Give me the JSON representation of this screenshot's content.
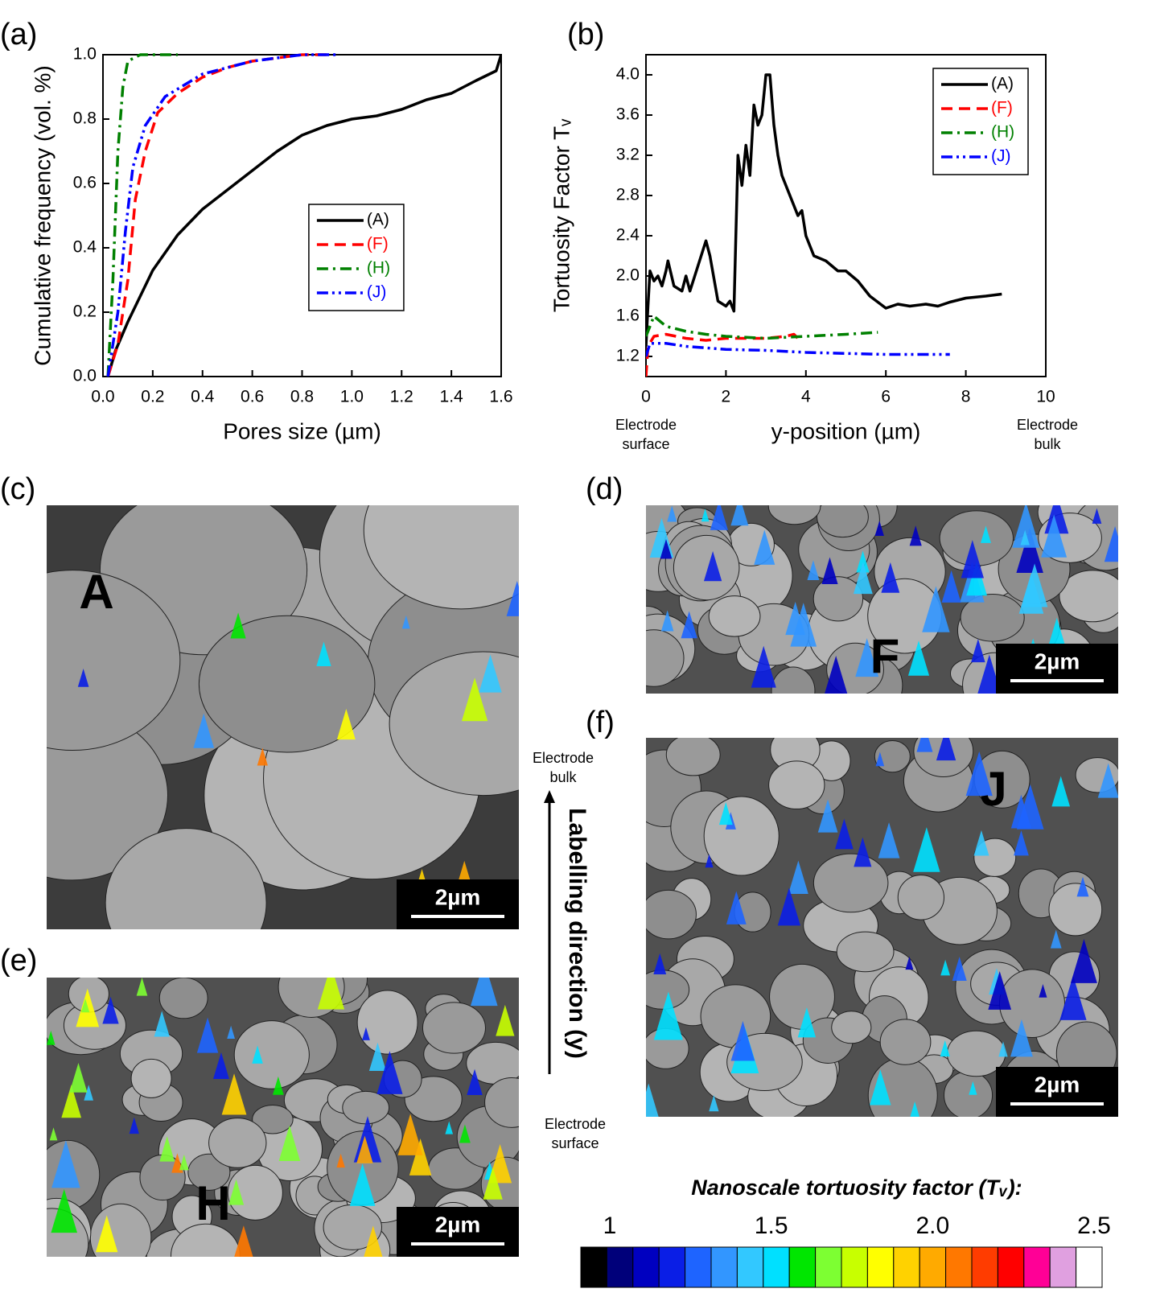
{
  "chart_data": [
    {
      "type": "line",
      "panel_label": "(a)",
      "x_label": "Pores size (µm)",
      "y_label": "Cumulative frequency (vol. %)",
      "xlim": [
        0,
        1.6
      ],
      "ylim": [
        0,
        1
      ],
      "xticks": [
        {
          "value": 0,
          "label": "0.0"
        },
        0.2,
        0.4,
        0.6,
        0.8,
        {
          "value": 1,
          "label": "1.0"
        },
        1.2,
        1.4,
        1.6
      ],
      "yticks": [
        {
          "value": 0,
          "label": "0.0"
        },
        0.2,
        0.4,
        0.6,
        0.8,
        {
          "value": 1,
          "label": "1.0"
        }
      ],
      "legend": "right",
      "series": [
        {
          "name": "(A)",
          "color": "#000000",
          "dash": "solid",
          "x": [
            0.02,
            0.05,
            0.1,
            0.15,
            0.2,
            0.3,
            0.4,
            0.5,
            0.6,
            0.7,
            0.8,
            0.9,
            1.0,
            1.1,
            1.2,
            1.3,
            1.4,
            1.5,
            1.58,
            1.6
          ],
          "values": [
            0,
            0.08,
            0.17,
            0.25,
            0.33,
            0.44,
            0.52,
            0.58,
            0.64,
            0.7,
            0.75,
            0.78,
            0.8,
            0.81,
            0.83,
            0.86,
            0.88,
            0.92,
            0.95,
            1.0
          ]
        },
        {
          "name": "(F)",
          "color": "#ff0000",
          "dash": "dash",
          "x": [
            0.02,
            0.06,
            0.1,
            0.13,
            0.17,
            0.22,
            0.3,
            0.4,
            0.5,
            0.6,
            0.7,
            0.8,
            0.9
          ],
          "values": [
            0,
            0.1,
            0.3,
            0.55,
            0.7,
            0.82,
            0.88,
            0.93,
            0.96,
            0.98,
            0.99,
            1.0,
            1.0
          ]
        },
        {
          "name": "(H)",
          "color": "#008000",
          "dash": "dashdot",
          "x": [
            0.02,
            0.04,
            0.06,
            0.08,
            0.1,
            0.15,
            0.3
          ],
          "values": [
            0,
            0.3,
            0.7,
            0.9,
            0.98,
            1.0,
            1.0
          ]
        },
        {
          "name": "(J)",
          "color": "#0000ff",
          "dash": "dashdotdot",
          "x": [
            0.02,
            0.06,
            0.09,
            0.12,
            0.17,
            0.25,
            0.4,
            0.6,
            0.8,
            0.95
          ],
          "values": [
            0,
            0.2,
            0.45,
            0.65,
            0.78,
            0.87,
            0.94,
            0.98,
            1.0,
            1.0
          ]
        }
      ]
    },
    {
      "type": "line",
      "panel_label": "(b)",
      "x_label": "y-position (µm)",
      "y_label": "Tortuosity Factor Tᵥ",
      "xlim": [
        0,
        10
      ],
      "ylim": [
        1.0,
        4.2
      ],
      "xticks": [
        0,
        2,
        4,
        6,
        8,
        10
      ],
      "yticks": [
        1.2,
        1.6,
        {
          "value": 2,
          "label": "2.0"
        },
        2.4,
        2.8,
        3.2,
        3.6,
        {
          "value": 4,
          "label": "4.0"
        }
      ],
      "legend": "upper right",
      "annotations": [
        "Electrode surface",
        "Electrode bulk"
      ],
      "series": [
        {
          "name": "(A)",
          "color": "#000000",
          "dash": "solid",
          "x": [
            0,
            0.05,
            0.1,
            0.2,
            0.3,
            0.4,
            0.5,
            0.55,
            0.7,
            0.9,
            1.0,
            1.1,
            1.3,
            1.5,
            1.6,
            1.8,
            2.0,
            2.1,
            2.2,
            2.3,
            2.4,
            2.5,
            2.6,
            2.7,
            2.8,
            2.9,
            3.0,
            3.1,
            3.2,
            3.3,
            3.4,
            3.6,
            3.8,
            3.9,
            4.0,
            4.2,
            4.5,
            4.8,
            5.0,
            5.3,
            5.6,
            6.0,
            6.3,
            6.6,
            7.0,
            7.3,
            7.6,
            8.0,
            8.5,
            8.9
          ],
          "values": [
            1.3,
            1.7,
            2.05,
            1.95,
            2.0,
            1.9,
            2.05,
            2.15,
            1.9,
            1.85,
            2.0,
            1.85,
            2.1,
            2.35,
            2.2,
            1.75,
            1.7,
            1.75,
            1.65,
            3.2,
            2.9,
            3.3,
            3.0,
            3.7,
            3.5,
            3.6,
            4.0,
            4.0,
            3.5,
            3.2,
            3.0,
            2.8,
            2.6,
            2.65,
            2.4,
            2.2,
            2.15,
            2.05,
            2.05,
            1.95,
            1.8,
            1.68,
            1.72,
            1.7,
            1.72,
            1.7,
            1.74,
            1.78,
            1.8,
            1.82
          ]
        },
        {
          "name": "(F)",
          "color": "#ff0000",
          "dash": "dash",
          "x": [
            0,
            0.05,
            0.2,
            0.5,
            1.0,
            1.5,
            2.0,
            2.5,
            3.0,
            3.5,
            3.7,
            3.8
          ],
          "values": [
            1.0,
            1.3,
            1.4,
            1.42,
            1.38,
            1.36,
            1.38,
            1.38,
            1.38,
            1.4,
            1.42,
            1.38
          ]
        },
        {
          "name": "(H)",
          "color": "#008000",
          "dash": "dashdot",
          "x": [
            0,
            0.2,
            0.5,
            1.0,
            1.5,
            2.0,
            3.0,
            4.0,
            5.0,
            5.8
          ],
          "values": [
            1.4,
            1.6,
            1.5,
            1.45,
            1.42,
            1.4,
            1.38,
            1.4,
            1.42,
            1.44
          ]
        },
        {
          "name": "(J)",
          "color": "#0000ff",
          "dash": "dashdotdot",
          "x": [
            0,
            0.1,
            0.5,
            1.0,
            2.0,
            3.0,
            4.0,
            5.0,
            6.0,
            7.6
          ],
          "values": [
            1.2,
            1.33,
            1.33,
            1.3,
            1.27,
            1.26,
            1.24,
            1.23,
            1.22,
            1.22
          ]
        }
      ]
    }
  ],
  "panels": [
    {
      "label": "(c)",
      "sample": "A",
      "scale_bar": "2µm"
    },
    {
      "label": "(d)",
      "sample": "F",
      "scale_bar": "2µm"
    },
    {
      "label": "(e)",
      "sample": "H",
      "scale_bar": "2µm"
    },
    {
      "label": "(f)",
      "sample": "J",
      "scale_bar": "2µm"
    }
  ],
  "direction": {
    "title": "Labelling direction (y)",
    "top": "Electrode bulk",
    "bottom": "Electrode surface"
  },
  "colorbar": {
    "title": "Nanoscale tortuosity factor (Tᵥ):",
    "ticks": [
      1,
      1.5,
      {
        "value": 2,
        "label": "2.0"
      },
      2.5
    ],
    "colors": [
      "#000000",
      "#00007a",
      "#0000c0",
      "#0a1ee6",
      "#1e64ff",
      "#3296ff",
      "#32c8ff",
      "#00e0ff",
      "#00e600",
      "#7dff32",
      "#c8ff00",
      "#ffff00",
      "#ffd200",
      "#ffaa00",
      "#ff7800",
      "#ff3c00",
      "#ff0000",
      "#ff0096",
      "#e0a0e0",
      "#ffffff"
    ]
  }
}
